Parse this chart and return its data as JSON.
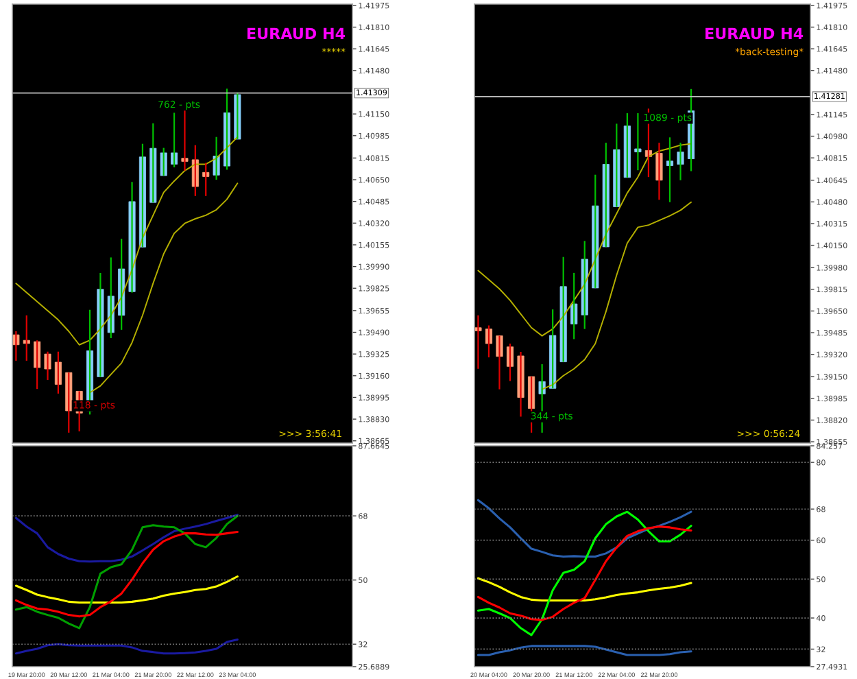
{
  "chart_data": [
    {
      "type": "candlestick",
      "title": "EURAUD H4",
      "subtitle": "*****",
      "tick_labels": "y",
      "categories": [
        null,
        null,
        null,
        null,
        null,
        null,
        null,
        null,
        null,
        null,
        null,
        null,
        null,
        null,
        null,
        null,
        null,
        null,
        null,
        null,
        null,
        null
      ],
      "ohlc": [
        [
          1.39471,
          1.39498,
          1.39274,
          1.39395
        ],
        [
          1.39429,
          1.39619,
          1.39274,
          1.39405
        ],
        [
          1.39419,
          1.39429,
          1.39059,
          1.39222
        ],
        [
          1.39325,
          1.39343,
          1.39128,
          1.39211
        ],
        [
          1.39263,
          1.39343,
          1.39024,
          1.39094
        ],
        [
          1.39184,
          1.39184,
          1.38727,
          1.38893
        ],
        [
          1.39042,
          1.39042,
          1.38737,
          1.38876
        ],
        [
          1.38893,
          1.39661,
          1.38865,
          1.3935
        ],
        [
          1.39152,
          1.39941,
          1.39152,
          1.39817
        ],
        [
          1.39488,
          1.40059,
          1.39446,
          1.39765
        ],
        [
          1.39619,
          1.40201,
          1.39509,
          1.39972
        ],
        [
          1.39799,
          1.40633,
          1.39792,
          1.40484
        ],
        [
          1.40138,
          1.40923,
          1.40138,
          1.40823
        ],
        [
          1.40477,
          1.41079,
          1.40477,
          1.40889
        ],
        [
          1.40681,
          1.40892,
          1.40681,
          1.40854
        ],
        [
          1.40768,
          1.41159,
          1.40744,
          1.40854
        ],
        [
          1.40813,
          1.4119,
          1.40719,
          1.40789
        ],
        [
          1.40802,
          1.40913,
          1.40526,
          1.40598
        ],
        [
          1.40706,
          1.40778,
          1.40526,
          1.40674
        ],
        [
          1.40685,
          1.40975,
          1.4065,
          1.4083
        ],
        [
          1.40754,
          1.41342,
          1.40726,
          1.41159
        ],
        [
          1.40958,
          1.41314,
          1.40958,
          1.41297
        ]
      ],
      "colors": [
        "#ffa07a",
        "#ffa07a",
        "#ffa07a",
        "#ffa07a",
        "#ffa07a",
        "#ffa07a",
        "#ffa07a",
        "#87cefa",
        "#87cefa",
        "#87cefa",
        "#87cefa",
        "#87cefa",
        "#87cefa",
        "#87cefa",
        "#87cefa",
        "#87cefa",
        "#ffa07a",
        "#ffa07a",
        "#ffa07a",
        "#87cefa",
        "#87cefa",
        "#87cefa"
      ],
      "series": [
        {
          "type": "line",
          "color": "#b5b000",
          "values": [
            1.39862,
            1.39792,
            1.39723,
            1.39654,
            1.39585,
            1.39498,
            1.39395,
            1.39429,
            1.39516,
            1.39619,
            1.39758,
            1.39965,
            1.40207,
            1.4038,
            1.40553,
            1.4064,
            1.40719,
            1.40768,
            1.40768,
            1.40813,
            1.40892,
            1.40975
          ]
        },
        {
          "type": "line",
          "color": "#b5b000",
          "values": [
            null,
            null,
            null,
            null,
            null,
            null,
            null,
            1.39031,
            1.39083,
            1.3917,
            1.39256,
            1.39412,
            1.39619,
            1.39862,
            1.40086,
            1.40242,
            1.40318,
            1.40353,
            1.4038,
            1.40422,
            1.40501,
            1.40623
          ]
        }
      ],
      "ylim": [
        1.38648,
        1.41985
      ],
      "yticks": [
        1.41975,
        {
          "value": 1.4181,
          "label": "1.41810"
        },
        1.41645,
        {
          "value": 1.4148,
          "label": "1.41480"
        },
        {
          "value": 1.4115,
          "label": "1.41150"
        },
        1.40985,
        1.40815,
        {
          "value": 1.4065,
          "label": "1.40650"
        },
        1.40485,
        {
          "value": 1.4032,
          "label": "1.40320"
        },
        1.40155,
        {
          "value": 1.3999,
          "label": "1.39990"
        },
        1.39825,
        1.39655,
        {
          "value": 1.3949,
          "label": "1.39490"
        },
        1.39325,
        {
          "value": 1.3916,
          "label": "1.39160"
        },
        1.38995,
        {
          "value": 1.3883,
          "label": "1.38830"
        },
        1.38665
      ],
      "ref_lines": [
        {
          "axis": "y",
          "value": 1.41309,
          "label": "1.41309",
          "color": "#c0c0c0"
        }
      ],
      "annotations": [
        "762 - pts",
        "118 - pts",
        ">>> 3:56:41"
      ]
    },
    {
      "type": "line",
      "categories": [
        null,
        "19 Mar 20:00",
        null,
        null,
        null,
        "20 Mar 12:00",
        null,
        null,
        null,
        "21 Mar 04:00",
        null,
        null,
        null,
        "21 Mar 20:00",
        null,
        null,
        null,
        "22 Mar 12:00",
        null,
        null,
        null,
        "23 Mar 04:00"
      ],
      "series": [
        {
          "color": "#1a1aa0",
          "values": [
            67.4,
            65.0,
            63.1,
            59.2,
            57.3,
            56.0,
            55.3,
            55.2,
            55.3,
            55.3,
            55.7,
            56.6,
            58.3,
            60.1,
            62.0,
            63.7,
            64.4,
            65.0,
            65.7,
            66.6,
            67.4,
            68.3
          ]
        },
        {
          "color": "#1a1aa0",
          "values": [
            29.4,
            30.1,
            30.7,
            31.7,
            32.0,
            31.7,
            31.6,
            31.6,
            31.6,
            31.6,
            31.6,
            31.1,
            30.1,
            29.8,
            29.4,
            29.4,
            29.5,
            29.7,
            30.1,
            30.7,
            32.6,
            33.3
          ]
        },
        {
          "color": "#ffff00",
          "values": [
            48.4,
            47.2,
            45.9,
            45.2,
            44.6,
            43.9,
            43.7,
            43.7,
            43.7,
            43.7,
            43.7,
            43.9,
            44.3,
            44.8,
            45.6,
            46.2,
            46.6,
            47.2,
            47.5,
            48.2,
            49.5,
            51.0
          ]
        },
        {
          "color": "#00a000",
          "values": [
            41.7,
            42.4,
            41.1,
            40.2,
            39.4,
            37.8,
            36.5,
            42.4,
            51.8,
            53.6,
            54.4,
            58.5,
            64.8,
            65.4,
            65.0,
            64.8,
            63.1,
            60.1,
            59.2,
            61.8,
            65.7,
            68.0
          ]
        },
        {
          "color": "#ff0000",
          "values": [
            44.3,
            43.0,
            42.0,
            41.7,
            41.1,
            40.2,
            39.8,
            40.2,
            42.4,
            44.0,
            46.2,
            50.1,
            54.7,
            58.5,
            60.9,
            62.2,
            63.1,
            63.1,
            62.8,
            62.7,
            63.1,
            63.5
          ]
        }
      ],
      "ylim": [
        25.6889,
        87.6645
      ],
      "yticks": [
        87.6645,
        68,
        50,
        32,
        25.6889
      ],
      "ref_lines": [
        {
          "axis": "y",
          "value": 68,
          "color": "#808080",
          "line_style": "dotted"
        },
        {
          "axis": "y",
          "value": 50,
          "color": "#808080",
          "line_style": "dotted"
        },
        {
          "axis": "y",
          "value": 32,
          "color": "#808080",
          "line_style": "dotted"
        }
      ]
    },
    {
      "type": "candlestick",
      "title": "EURAUD H4",
      "subtitle": "*back-testing*",
      "tick_labels": "y",
      "categories": [
        null,
        null,
        null,
        null,
        null,
        null,
        null,
        null,
        null,
        null,
        null,
        null,
        null,
        null,
        null,
        null,
        null,
        null,
        null,
        null,
        null
      ],
      "ohlc": [
        [
          1.39523,
          1.39617,
          1.3921,
          1.39499
        ],
        [
          1.39513,
          1.3954,
          1.39297,
          1.39402
        ],
        [
          1.39461,
          1.39461,
          1.39054,
          1.39304
        ],
        [
          1.39377,
          1.39402,
          1.39117,
          1.39228
        ],
        [
          1.39308,
          1.39339,
          1.38846,
          1.38992
        ],
        [
          1.39151,
          1.39151,
          1.38724,
          1.38908
        ],
        [
          1.39019,
          1.39245,
          1.38724,
          1.39113
        ],
        [
          1.39061,
          1.39662,
          1.39061,
          1.39464
        ],
        [
          1.39263,
          1.40061,
          1.39263,
          1.39836
        ],
        [
          1.39551,
          1.3994,
          1.39436,
          1.39704
        ],
        [
          1.3962,
          1.40183,
          1.39513,
          1.40044
        ],
        [
          1.39825,
          1.40687,
          1.39825,
          1.4045
        ],
        [
          1.40138,
          1.4093,
          1.40138,
          1.40766
        ],
        [
          1.40443,
          1.41075,
          1.40443,
          1.40878
        ],
        [
          1.40666,
          1.41155,
          1.40666,
          1.41058
        ],
        [
          1.4086,
          1.41155,
          1.40721,
          1.40884
        ],
        [
          1.40871,
          1.4119,
          1.40669,
          1.40825
        ],
        [
          1.4085,
          1.4093,
          1.40496,
          1.40645
        ],
        [
          1.40756,
          1.40971,
          1.40478,
          1.40791
        ],
        [
          1.40766,
          1.4093,
          1.40645,
          1.4086
        ],
        [
          1.40808,
          1.41339,
          1.40714,
          1.41173
        ]
      ],
      "colors": [
        "#ffa07a",
        "#ffa07a",
        "#ffa07a",
        "#ffa07a",
        "#ffa07a",
        "#ffa07a",
        "#87cefa",
        "#87cefa",
        "#87cefa",
        "#87cefa",
        "#87cefa",
        "#87cefa",
        "#87cefa",
        "#87cefa",
        "#87cefa",
        "#87cefa",
        "#ffa07a",
        "#ffa07a",
        "#87cefa",
        "#87cefa",
        "#87cefa"
      ],
      "series": [
        {
          "type": "line",
          "color": "#b5b000",
          "values": [
            1.39957,
            1.39888,
            1.39818,
            1.39731,
            1.39627,
            1.39523,
            1.39461,
            1.39513,
            1.3961,
            1.39731,
            1.39853,
            1.40044,
            1.40235,
            1.40391,
            1.40548,
            1.40669,
            1.40825,
            1.40867,
            1.40888,
            1.40912,
            1.40923
          ]
        },
        {
          "type": "line",
          "color": "#b5b000",
          "values": [
            null,
            null,
            null,
            null,
            null,
            null,
            1.39054,
            1.39089,
            1.39158,
            1.3921,
            1.3928,
            1.39402,
            1.39645,
            1.39922,
            1.40166,
            1.40287,
            1.40304,
            1.40339,
            1.40374,
            1.40416,
            1.40478
          ]
        }
      ],
      "ylim": [
        1.38645,
        1.41985
      ],
      "yticks": [
        1.41975,
        {
          "value": 1.4181,
          "label": "1.41810"
        },
        1.41645,
        {
          "value": 1.4148,
          "label": "1.41480"
        },
        1.41145,
        {
          "value": 1.4098,
          "label": "1.40980"
        },
        1.40815,
        1.40645,
        {
          "value": 1.4048,
          "label": "1.40480"
        },
        1.40315,
        {
          "value": 1.4015,
          "label": "1.40150"
        },
        {
          "value": 1.3998,
          "label": "1.39980"
        },
        1.39815,
        {
          "value": 1.3965,
          "label": "1.39650"
        },
        1.39485,
        {
          "value": 1.3932,
          "label": "1.39320"
        },
        {
          "value": 1.3915,
          "label": "1.39150"
        },
        1.38985,
        {
          "value": 1.3882,
          "label": "1.38820"
        },
        1.38655
      ],
      "ref_lines": [
        {
          "axis": "y",
          "value": 1.41281,
          "label": "1.41281",
          "color": "#c0c0c0"
        }
      ],
      "annotations": [
        "1089 - pts",
        "344 - pts",
        ">>> 0:56:24"
      ]
    },
    {
      "type": "line",
      "categories": [
        null,
        "20 Mar 04:00",
        null,
        null,
        null,
        "20 Mar 20:00",
        null,
        null,
        null,
        "21 Mar 12:00",
        null,
        null,
        null,
        "22 Mar 04:00",
        null,
        null,
        null,
        "22 Mar 20:00",
        null,
        null,
        null
      ],
      "series": [
        {
          "color": "#2a60b0",
          "values": [
            70.3,
            68.2,
            65.6,
            63.3,
            60.5,
            57.8,
            57.0,
            56.1,
            55.8,
            55.9,
            55.8,
            55.8,
            56.6,
            58.1,
            60.5,
            61.7,
            62.9,
            63.7,
            64.7,
            65.9,
            67.3
          ]
        },
        {
          "color": "#2a60b0",
          "values": [
            30.5,
            30.5,
            31.2,
            31.7,
            32.4,
            32.8,
            32.8,
            32.8,
            32.8,
            32.8,
            32.8,
            32.6,
            31.9,
            31.2,
            30.5,
            30.5,
            30.5,
            30.5,
            30.7,
            31.2,
            31.4
          ]
        },
        {
          "color": "#ffff00",
          "values": [
            50.2,
            49.2,
            48.0,
            46.6,
            45.4,
            44.7,
            44.5,
            44.5,
            44.5,
            44.5,
            44.5,
            44.8,
            45.3,
            45.9,
            46.3,
            46.6,
            47.1,
            47.5,
            47.8,
            48.3,
            49.0
          ]
        },
        {
          "color": "#00ff00",
          "values": [
            41.9,
            42.3,
            41.2,
            40.0,
            37.4,
            35.6,
            39.7,
            47.1,
            51.6,
            52.4,
            54.6,
            60.5,
            64.1,
            66.1,
            67.3,
            65.3,
            62.3,
            59.7,
            59.7,
            61.4,
            63.7
          ]
        },
        {
          "color": "#ff0000",
          "values": [
            45.4,
            43.9,
            42.7,
            41.2,
            40.6,
            39.7,
            39.5,
            40.3,
            42.3,
            43.9,
            45.1,
            49.8,
            54.6,
            58.1,
            61.1,
            62.3,
            63.1,
            63.5,
            63.3,
            62.8,
            62.5
          ]
        }
      ],
      "ylim": [
        27.4931,
        84.257
      ],
      "yticks": [
        84.257,
        80,
        68,
        60,
        50,
        40,
        32,
        27.4931
      ],
      "ref_lines": [
        {
          "axis": "y",
          "value": 80,
          "color": "#808080",
          "line_style": "dotted"
        },
        {
          "axis": "y",
          "value": 68,
          "color": "#808080",
          "line_style": "dotted"
        },
        {
          "axis": "y",
          "value": 60,
          "color": "#808080",
          "line_style": "dotted"
        },
        {
          "axis": "y",
          "value": 50,
          "color": "#808080",
          "line_style": "dotted"
        },
        {
          "axis": "y",
          "value": 40,
          "color": "#808080",
          "line_style": "dotted"
        },
        {
          "axis": "y",
          "value": 32,
          "color": "#808080",
          "line_style": "dotted"
        }
      ]
    }
  ]
}
